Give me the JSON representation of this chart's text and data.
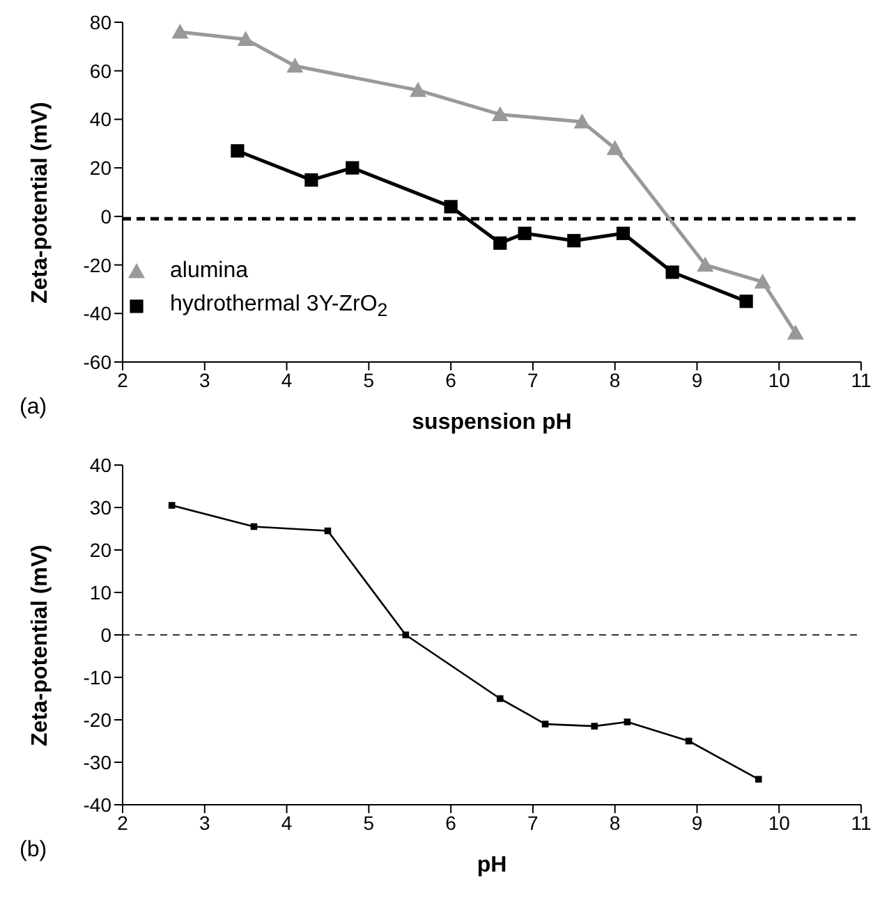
{
  "chart_data": [
    {
      "type": "line",
      "xlabel": "suspension pH",
      "ylabel": "Zeta-potential (mV)",
      "annotations": [
        "(a)"
      ],
      "xlim": [
        2,
        11
      ],
      "xticks": [
        2,
        3,
        4,
        5,
        6,
        7,
        8,
        9,
        10,
        11
      ],
      "ylim": [
        -60,
        80
      ],
      "yticks": [
        -60,
        -40,
        -20,
        0,
        20,
        40,
        60,
        80
      ],
      "legend": "bottom left",
      "line_style": "solid",
      "ref_lines": [
        {
          "axis": "y",
          "value": -1,
          "color": "#000000",
          "line_style": "dashed"
        }
      ],
      "series": [
        {
          "name": "alumina",
          "color": "#999999",
          "marker": "triangle",
          "x": [
            2.7,
            3.5,
            4.1,
            5.6,
            6.6,
            7.6,
            8.0,
            9.1,
            9.8,
            10.2
          ],
          "values": [
            76,
            73,
            62,
            52,
            42,
            39,
            28,
            -20,
            -27,
            -48
          ]
        },
        {
          "name": "hydrothermal 3Y-ZrO$_{2}$",
          "color": "#000000",
          "marker": "square",
          "x": [
            3.4,
            4.3,
            4.8,
            6.0,
            6.6,
            6.9,
            7.5,
            8.1,
            8.7,
            9.6
          ],
          "values": [
            27,
            15,
            20,
            4,
            -11,
            -7,
            -10,
            -7,
            -23,
            -35
          ]
        }
      ]
    },
    {
      "type": "line",
      "xlabel": "pH",
      "ylabel": "Zeta-potential (mV)",
      "annotations": [
        "(b)"
      ],
      "xlim": [
        2,
        11
      ],
      "xticks": [
        2,
        3,
        4,
        5,
        6,
        7,
        8,
        9,
        10,
        11
      ],
      "ylim": [
        -40,
        40
      ],
      "yticks": [
        -40,
        -30,
        -20,
        -10,
        0,
        10,
        20,
        30,
        40
      ],
      "legend": false,
      "line_style": "solid",
      "ref_lines": [
        {
          "axis": "y",
          "value": 0,
          "color": "#333333",
          "line_style": "dashed"
        }
      ],
      "series": [
        {
          "color": "#000000",
          "marker": "square",
          "x": [
            2.6,
            3.6,
            4.5,
            5.45,
            6.6,
            7.15,
            7.75,
            8.15,
            8.9,
            9.75
          ],
          "values": [
            30.5,
            25.5,
            24.5,
            0,
            -15,
            -21,
            -21.5,
            -20.5,
            -25,
            -34
          ]
        }
      ]
    }
  ]
}
